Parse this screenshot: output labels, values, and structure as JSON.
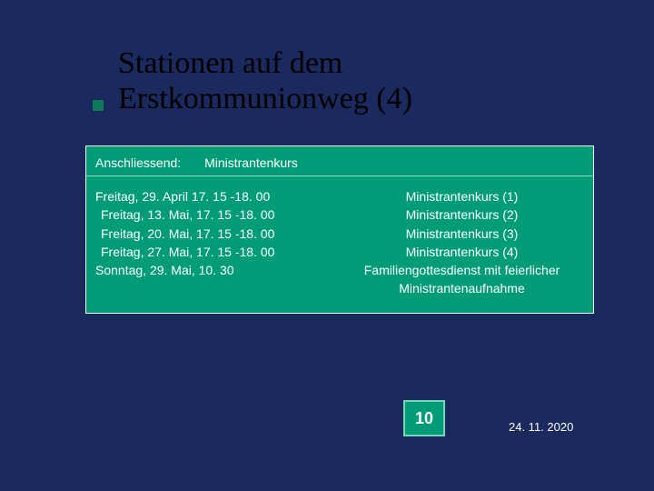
{
  "colors": {
    "background": "#1a2a5e",
    "accent": "#009b77",
    "accent_border": "#7bd4b8",
    "bullet": "#0f7a5a",
    "title_text": "#000000",
    "body_text": "#ffffff"
  },
  "title": {
    "line1": "Stationen auf dem",
    "line2": "Erstkommunionweg  (4)"
  },
  "content": {
    "header_label": "Anschliessend:",
    "header_value": "Ministrantenkurs",
    "rows": [
      {
        "left": "Freitag, 29. April 17. 15 -18. 00",
        "right": "Ministrantenkurs (1)",
        "indent": false
      },
      {
        "left": "Freitag, 13. Mai, 17. 15 -18. 00",
        "right": "Ministrantenkurs (2)",
        "indent": true
      },
      {
        "left": "Freitag, 20. Mai, 17. 15 -18. 00",
        "right": "Ministrantenkurs (3)",
        "indent": true
      },
      {
        "left": "Freitag, 27. Mai, 17. 15 -18. 00",
        "right": "Ministrantenkurs (4)",
        "indent": true
      },
      {
        "left": "Sonntag, 29. Mai, 10. 30",
        "right": "Familiengottesdienst mit feierlicher",
        "indent": false
      }
    ],
    "right_extra": "Ministrantenaufnahme"
  },
  "footer": {
    "page_number": "10",
    "date": "24. 11. 2020"
  }
}
